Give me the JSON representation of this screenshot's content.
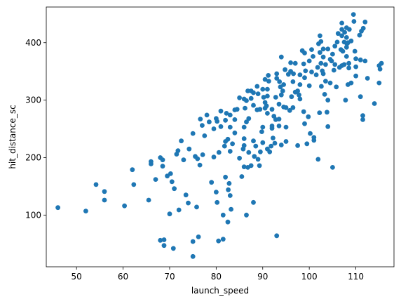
{
  "chart_data": {
    "type": "scatter",
    "title": "",
    "xlabel": "launch_speed",
    "ylabel": "hit_distance_sc",
    "xlim": [
      43.5,
      118.2
    ],
    "ylim": [
      10,
      462
    ],
    "xticks": [
      50,
      60,
      70,
      80,
      90,
      100,
      110
    ],
    "yticks": [
      100,
      200,
      300,
      400
    ],
    "grid": false,
    "legend": "none",
    "marker_color": "#1f77b4",
    "points": [
      [
        46,
        113
      ],
      [
        52,
        107
      ],
      [
        54.2,
        153
      ],
      [
        56,
        126
      ],
      [
        56,
        141
      ],
      [
        60.3,
        116
      ],
      [
        62,
        179
      ],
      [
        62.3,
        153
      ],
      [
        65.5,
        126
      ],
      [
        66,
        189
      ],
      [
        66,
        193
      ],
      [
        67,
        162
      ],
      [
        68,
        56
      ],
      [
        68,
        200
      ],
      [
        68.5,
        185
      ],
      [
        68.5,
        196
      ],
      [
        68.8,
        57
      ],
      [
        68.8,
        47
      ],
      [
        69.5,
        168
      ],
      [
        70,
        102
      ],
      [
        70.2,
        172
      ],
      [
        70.5,
        158
      ],
      [
        70.8,
        42
      ],
      [
        71,
        146
      ],
      [
        71.5,
        206
      ],
      [
        71.8,
        212
      ],
      [
        72,
        109
      ],
      [
        72.5,
        229
      ],
      [
        73,
        196
      ],
      [
        73.5,
        135
      ],
      [
        74,
        121
      ],
      [
        74.2,
        215
      ],
      [
        75,
        54
      ],
      [
        75,
        242
      ],
      [
        75,
        28
      ],
      [
        75.5,
        202
      ],
      [
        75.8,
        114
      ],
      [
        76,
        198
      ],
      [
        76.2,
        62
      ],
      [
        76.5,
        187
      ],
      [
        76.6,
        267
      ],
      [
        77,
        256
      ],
      [
        77.1,
        205
      ],
      [
        77.5,
        238
      ],
      [
        78,
        274
      ],
      [
        78.5,
        262
      ],
      [
        79,
        157
      ],
      [
        79.5,
        201
      ],
      [
        79.5,
        250
      ],
      [
        80,
        268
      ],
      [
        80,
        140
      ],
      [
        80.2,
        263
      ],
      [
        80.2,
        122
      ],
      [
        80.5,
        55
      ],
      [
        80.6,
        209
      ],
      [
        81,
        254
      ],
      [
        81,
        281
      ],
      [
        81.5,
        58
      ],
      [
        81.5,
        100
      ],
      [
        81.8,
        220
      ],
      [
        82,
        166
      ],
      [
        82,
        228
      ],
      [
        82,
        265
      ],
      [
        82.2,
        277
      ],
      [
        82.5,
        88
      ],
      [
        82.5,
        232
      ],
      [
        82.6,
        144
      ],
      [
        82.8,
        155
      ],
      [
        83,
        274
      ],
      [
        83,
        253
      ],
      [
        83,
        211
      ],
      [
        83,
        134
      ],
      [
        83.2,
        110
      ],
      [
        83.5,
        224
      ],
      [
        84,
        283
      ],
      [
        84,
        243
      ],
      [
        84,
        266
      ],
      [
        84.5,
        284
      ],
      [
        85,
        304
      ],
      [
        85,
        199
      ],
      [
        85.5,
        167
      ],
      [
        85.8,
        215
      ],
      [
        86,
        253
      ],
      [
        86,
        184
      ],
      [
        86,
        302
      ],
      [
        86,
        233
      ],
      [
        86,
        221
      ],
      [
        86.2,
        286
      ],
      [
        86.5,
        100
      ],
      [
        86.5,
        262
      ],
      [
        86.5,
        299
      ],
      [
        86.8,
        316
      ],
      [
        86.8,
        183
      ],
      [
        87,
        268
      ],
      [
        87,
        209
      ],
      [
        87.5,
        303
      ],
      [
        87.5,
        316
      ],
      [
        87.5,
        186
      ],
      [
        88,
        291
      ],
      [
        88,
        122
      ],
      [
        88,
        229
      ],
      [
        88,
        313
      ],
      [
        88.2,
        202
      ],
      [
        88.5,
        220
      ],
      [
        88.8,
        283
      ],
      [
        88.8,
        324
      ],
      [
        89,
        197
      ],
      [
        89,
        311
      ],
      [
        89.3,
        186
      ],
      [
        89.4,
        284
      ],
      [
        89.5,
        210
      ],
      [
        89.8,
        245
      ],
      [
        90,
        319
      ],
      [
        90,
        226
      ],
      [
        90,
        253
      ],
      [
        90.2,
        305
      ],
      [
        90.5,
        286
      ],
      [
        90.5,
        296
      ],
      [
        90.5,
        336
      ],
      [
        90.8,
        290
      ],
      [
        91,
        319
      ],
      [
        91,
        277
      ],
      [
        91,
        215
      ],
      [
        91,
        307
      ],
      [
        91.2,
        343
      ],
      [
        91.3,
        333
      ],
      [
        91.5,
        210
      ],
      [
        91.8,
        220
      ],
      [
        92,
        251
      ],
      [
        92,
        284
      ],
      [
        92,
        255
      ],
      [
        92.2,
        234
      ],
      [
        92.4,
        272
      ],
      [
        92.6,
        225
      ],
      [
        92.8,
        266
      ],
      [
        92.8,
        305
      ],
      [
        93,
        64
      ],
      [
        93,
        338
      ],
      [
        93,
        346
      ],
      [
        93.5,
        267
      ],
      [
        93.5,
        293
      ],
      [
        93.5,
        255
      ],
      [
        93.6,
        332
      ],
      [
        93.8,
        323
      ],
      [
        94,
        375
      ],
      [
        94,
        309
      ],
      [
        94,
        222
      ],
      [
        94.3,
        316
      ],
      [
        94.5,
        288
      ],
      [
        94.5,
        327
      ],
      [
        94.8,
        353
      ],
      [
        95,
        253
      ],
      [
        95,
        287
      ],
      [
        95,
        228
      ],
      [
        95.5,
        345
      ],
      [
        95.8,
        282
      ],
      [
        96,
        350
      ],
      [
        96,
        365
      ],
      [
        96.2,
        306
      ],
      [
        96.5,
        287
      ],
      [
        96.5,
        332
      ],
      [
        96.6,
        346
      ],
      [
        97,
        314
      ],
      [
        97,
        364
      ],
      [
        97.5,
        316
      ],
      [
        97.5,
        221
      ],
      [
        97.8,
        309
      ],
      [
        98,
        302
      ],
      [
        98,
        327
      ],
      [
        98,
        344
      ],
      [
        98.5,
        386
      ],
      [
        98.8,
        280
      ],
      [
        98.8,
        363
      ],
      [
        99,
        339
      ],
      [
        99,
        382
      ],
      [
        99.2,
        351
      ],
      [
        99,
        259
      ],
      [
        99.5,
        224
      ],
      [
        99.8,
        271
      ],
      [
        100,
        368
      ],
      [
        100,
        325
      ],
      [
        100.2,
        242
      ],
      [
        100.5,
        349
      ],
      [
        100.5,
        388
      ],
      [
        100.8,
        376
      ],
      [
        101,
        235
      ],
      [
        101,
        230
      ],
      [
        101.5,
        344
      ],
      [
        101.8,
        357
      ],
      [
        101.9,
        197
      ],
      [
        102,
        398
      ],
      [
        102.2,
        278
      ],
      [
        102.3,
        383
      ],
      [
        102.3,
        412
      ],
      [
        102.5,
        402
      ],
      [
        102.5,
        364
      ],
      [
        102.6,
        324
      ],
      [
        102.8,
        351
      ],
      [
        103,
        375
      ],
      [
        103,
        389
      ],
      [
        103,
        346
      ],
      [
        103.3,
        310
      ],
      [
        103.5,
        362
      ],
      [
        103.5,
        333
      ],
      [
        103.8,
        279
      ],
      [
        104,
        254
      ],
      [
        104,
        300
      ],
      [
        104,
        389
      ],
      [
        104.5,
        330
      ],
      [
        104.5,
        371
      ],
      [
        104.8,
        368
      ],
      [
        105,
        183
      ],
      [
        105,
        380
      ],
      [
        105.3,
        352
      ],
      [
        105.5,
        362
      ],
      [
        105.5,
        394
      ],
      [
        105.8,
        323
      ],
      [
        106,
        401
      ],
      [
        106.2,
        416
      ],
      [
        106.5,
        357
      ],
      [
        106.8,
        388
      ],
      [
        107,
        360
      ],
      [
        107,
        412
      ],
      [
        107,
        423
      ],
      [
        107,
        434
      ],
      [
        107.2,
        385
      ],
      [
        107.5,
        362
      ],
      [
        107.5,
        401
      ],
      [
        107.6,
        418
      ],
      [
        107.8,
        300
      ],
      [
        108,
        376
      ],
      [
        108,
        409
      ],
      [
        108,
        392
      ],
      [
        108,
        426
      ],
      [
        108.1,
        398
      ],
      [
        108.3,
        400
      ],
      [
        108.3,
        327
      ],
      [
        108.5,
        356
      ],
      [
        108.5,
        364
      ],
      [
        108.6,
        423
      ],
      [
        109,
        403
      ],
      [
        109,
        330
      ],
      [
        109.5,
        449
      ],
      [
        109.6,
        437
      ],
      [
        109.8,
        385
      ],
      [
        110,
        342
      ],
      [
        110,
        372
      ],
      [
        110,
        358
      ],
      [
        110.8,
        413
      ],
      [
        111,
        370
      ],
      [
        111,
        306
      ],
      [
        111.2,
        420
      ],
      [
        111.5,
        273
      ],
      [
        111.5,
        266
      ],
      [
        111.6,
        425
      ],
      [
        112,
        368
      ],
      [
        112.5,
        338
      ],
      [
        112,
        436
      ],
      [
        114,
        294
      ],
      [
        115,
        360
      ],
      [
        115,
        330
      ],
      [
        115.2,
        354
      ],
      [
        115.5,
        364
      ]
    ]
  }
}
